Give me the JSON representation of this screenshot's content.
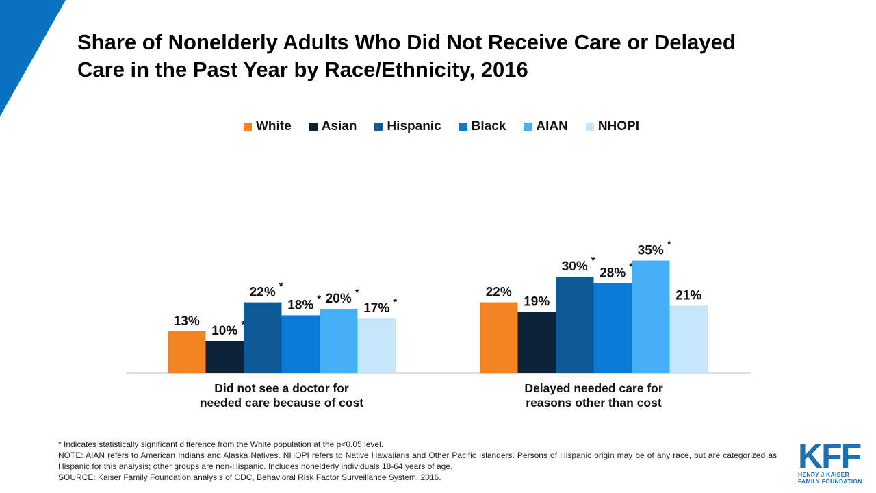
{
  "header": {
    "title": "Share of Nonelderly Adults Who Did Not Receive Care or Delayed\nCare in the Past Year by Race/Ethnicity, 2016"
  },
  "colors": {
    "accent_triangle": "#0a71c0",
    "White": "#f28322",
    "Asian": "#0b2239",
    "Hispanic": "#0e5a97",
    "Black": "#0a7ad6",
    "AIAN": "#45b0f5",
    "NHOPI": "#c5e6fb"
  },
  "chart_data": {
    "type": "bar",
    "title": "Share of Nonelderly Adults Who Did Not Receive Care or Delayed Care in the Past Year by Race/Ethnicity, 2016",
    "categories": [
      "Did not see a doctor for\nneeded care because of cost",
      "Delayed needed care for\nreasons other than cost"
    ],
    "ylim": [
      0,
      40
    ],
    "grid": false,
    "legend_position": "top-center",
    "series": [
      {
        "name": "White",
        "values": [
          13,
          22
        ],
        "labels": [
          "13%",
          "22%"
        ],
        "significant": [
          false,
          false
        ]
      },
      {
        "name": "Asian",
        "values": [
          10,
          19
        ],
        "labels": [
          "10%",
          "19%"
        ],
        "significant": [
          true,
          false
        ]
      },
      {
        "name": "Hispanic",
        "values": [
          22,
          30
        ],
        "labels": [
          "22%",
          "30%"
        ],
        "significant": [
          true,
          true
        ]
      },
      {
        "name": "Black",
        "values": [
          18,
          28
        ],
        "labels": [
          "18%",
          "28%"
        ],
        "significant": [
          true,
          true
        ]
      },
      {
        "name": "AIAN",
        "values": [
          20,
          35
        ],
        "labels": [
          "20%",
          "35%"
        ],
        "significant": [
          true,
          true
        ]
      },
      {
        "name": "NHOPI",
        "values": [
          17,
          21
        ],
        "labels": [
          "17%",
          "21%"
        ],
        "significant": [
          true,
          false
        ]
      }
    ],
    "significance_marker": "*"
  },
  "footnotes": {
    "significance": "* Indicates statistically significant difference from the White population at the p<0.05 level.",
    "note": "NOTE: AIAN refers to American Indians and Alaska Natives. NHOPI refers to Native Hawaiians and Other Pacific Islanders. Persons of Hispanic origin may be of any race, but are categorized as Hispanic for this analysis; other groups are non-Hispanic. Includes nonelderly individuals 18-64 years of age.",
    "source": "SOURCE: Kaiser Family Foundation analysis of CDC, Behavioral Risk Factor Surveillance System, 2016."
  },
  "logo": {
    "mark": "KFF",
    "line1": "HENRY J KAISER",
    "line2": "FAMILY FOUNDATION"
  }
}
